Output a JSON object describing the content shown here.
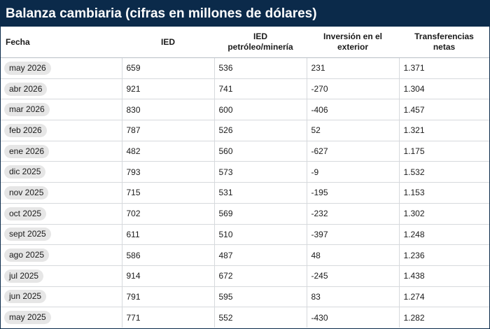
{
  "title": "Balanza cambiaria (cifras en millones de dólares)",
  "columns": {
    "fecha": "Fecha",
    "ied": "IED",
    "ied_petroleo_1": "IED",
    "ied_petroleo_2": "petróleo/minería",
    "inversion_1": "Inversión en el",
    "inversion_2": "exterior",
    "transferencias_1": "Transferencias",
    "transferencias_2": "netas"
  },
  "rows": [
    {
      "fecha": "may 2026",
      "ied": "659",
      "ied_petroleo": "536",
      "inversion": "231",
      "transferencias": "1.371"
    },
    {
      "fecha": "abr 2026",
      "ied": "921",
      "ied_petroleo": "741",
      "inversion": "-270",
      "transferencias": "1.304"
    },
    {
      "fecha": "mar 2026",
      "ied": "830",
      "ied_petroleo": "600",
      "inversion": "-406",
      "transferencias": "1.457"
    },
    {
      "fecha": "feb 2026",
      "ied": "787",
      "ied_petroleo": "526",
      "inversion": "52",
      "transferencias": "1.321"
    },
    {
      "fecha": "ene 2026",
      "ied": "482",
      "ied_petroleo": "560",
      "inversion": "-627",
      "transferencias": "1.175"
    },
    {
      "fecha": "dic 2025",
      "ied": "793",
      "ied_petroleo": "573",
      "inversion": "-9",
      "transferencias": "1.532"
    },
    {
      "fecha": "nov 2025",
      "ied": "715",
      "ied_petroleo": "531",
      "inversion": "-195",
      "transferencias": "1.153"
    },
    {
      "fecha": "oct 2025",
      "ied": "702",
      "ied_petroleo": "569",
      "inversion": "-232",
      "transferencias": "1.302"
    },
    {
      "fecha": "sept 2025",
      "ied": "611",
      "ied_petroleo": "510",
      "inversion": "-397",
      "transferencias": "1.248"
    },
    {
      "fecha": "ago 2025",
      "ied": "586",
      "ied_petroleo": "487",
      "inversion": "48",
      "transferencias": "1.236"
    },
    {
      "fecha": "jul 2025",
      "ied": "914",
      "ied_petroleo": "672",
      "inversion": "-245",
      "transferencias": "1.438"
    },
    {
      "fecha": "jun 2025",
      "ied": "791",
      "ied_petroleo": "595",
      "inversion": "83",
      "transferencias": "1.274"
    },
    {
      "fecha": "may 2025",
      "ied": "771",
      "ied_petroleo": "552",
      "inversion": "-430",
      "transferencias": "1.282"
    }
  ],
  "colors": {
    "header_bg": "#0b2a4a",
    "pill_bg": "#e6e6e6"
  }
}
